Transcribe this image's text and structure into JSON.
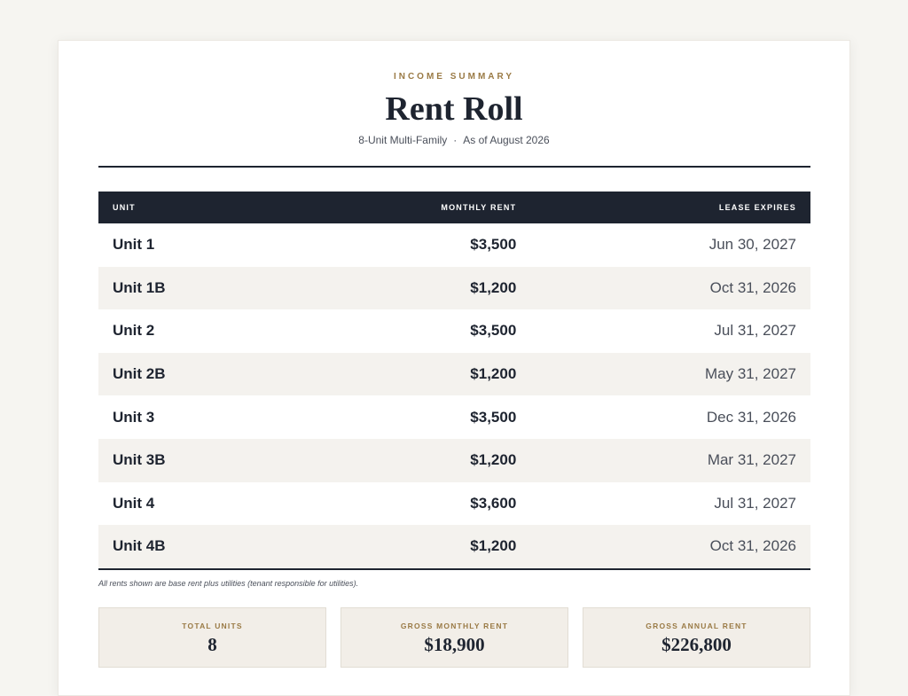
{
  "header": {
    "eyebrow": "INCOME SUMMARY",
    "title": "Rent Roll",
    "property": "8-Unit Multi-Family",
    "as_of": "As of August 2026"
  },
  "table": {
    "columns": [
      "UNIT",
      "MONTHLY RENT",
      "LEASE EXPIRES"
    ],
    "rows": [
      [
        "Unit 1",
        "$3,500",
        "Jun 30, 2027"
      ],
      [
        "Unit 1B",
        "$1,200",
        "Oct 31, 2026"
      ],
      [
        "Unit 2",
        "$3,500",
        "Jul 31, 2027"
      ],
      [
        "Unit 2B",
        "$1,200",
        "May 31, 2027"
      ],
      [
        "Unit 3",
        "$3,500",
        "Dec 31, 2026"
      ],
      [
        "Unit 3B",
        "$1,200",
        "Mar 31, 2027"
      ],
      [
        "Unit 4",
        "$3,600",
        "Jul 31, 2027"
      ],
      [
        "Unit 4B",
        "$1,200",
        "Oct 31, 2026"
      ]
    ]
  },
  "note": "All rents shown are base rent plus utilities (tenant responsible for utilities).",
  "summary": [
    {
      "label": "TOTAL UNITS",
      "value": "8"
    },
    {
      "label": "GROSS MONTHLY RENT",
      "value": "$18,900"
    },
    {
      "label": "GROSS ANNUAL RENT",
      "value": "$226,800"
    }
  ]
}
